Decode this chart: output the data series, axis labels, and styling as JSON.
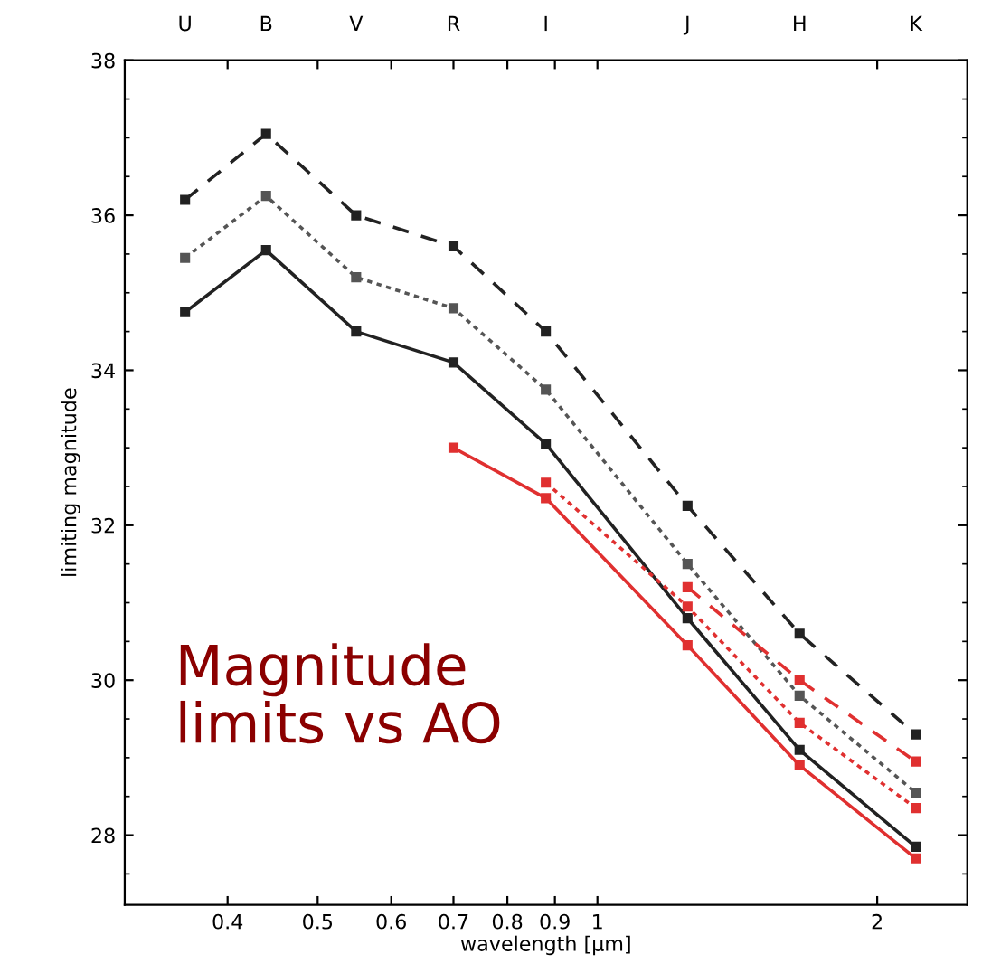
{
  "chart_data": {
    "type": "line",
    "xlabel": "wavelength [μm]",
    "ylabel": "limiting magnitude",
    "log": "x",
    "xlim": [
      0.31,
      2.5
    ],
    "xticks": [
      0.4,
      0.5,
      0.6,
      0.7,
      0.8,
      0.9,
      {
        "value": 1,
        "label": "1"
      },
      {
        "value": 2,
        "label": "2"
      }
    ],
    "ylim": [
      27.1,
      38
    ],
    "yticks": [
      28,
      30,
      32,
      34,
      36,
      38
    ],
    "grid": false,
    "marker": "square",
    "series": [
      {
        "color": "#222222",
        "line_style": "dashed",
        "x": [
          0.36,
          0.44,
          0.55,
          0.7,
          0.88,
          1.25,
          1.65,
          2.2
        ],
        "values": [
          36.2,
          37.05,
          36.0,
          35.6,
          34.5,
          32.25,
          30.6,
          29.3
        ]
      },
      {
        "color": "#555555",
        "line_style": "dotted",
        "x": [
          0.36,
          0.44,
          0.55,
          0.7,
          0.88,
          1.25,
          1.65,
          2.2
        ],
        "values": [
          35.45,
          36.25,
          35.2,
          34.8,
          33.75,
          31.5,
          29.8,
          28.55
        ]
      },
      {
        "color": "#222222",
        "line_style": "solid",
        "x": [
          0.36,
          0.44,
          0.55,
          0.7,
          0.88,
          1.25,
          1.65,
          2.2
        ],
        "values": [
          34.75,
          35.55,
          34.5,
          34.1,
          33.05,
          30.8,
          29.1,
          27.85
        ]
      },
      {
        "color": "#e03030",
        "line_style": "solid",
        "x": [
          0.7,
          0.88,
          1.25,
          1.65,
          2.2
        ],
        "values": [
          33.0,
          32.35,
          30.45,
          28.9,
          27.7
        ]
      },
      {
        "color": "#e03030",
        "line_style": "dotted",
        "x": [
          0.88,
          1.25,
          1.65,
          2.2
        ],
        "values": [
          32.55,
          30.95,
          29.45,
          28.35
        ]
      },
      {
        "color": "#e03030",
        "line_style": "dashed",
        "x": [
          1.25,
          1.65,
          2.2
        ],
        "values": [
          31.2,
          30.0,
          28.95
        ]
      }
    ],
    "annotations": [
      "Magnitude\nlimits vs AO",
      "U",
      "B",
      "V",
      "R",
      "I",
      "J",
      "H",
      "K"
    ]
  }
}
